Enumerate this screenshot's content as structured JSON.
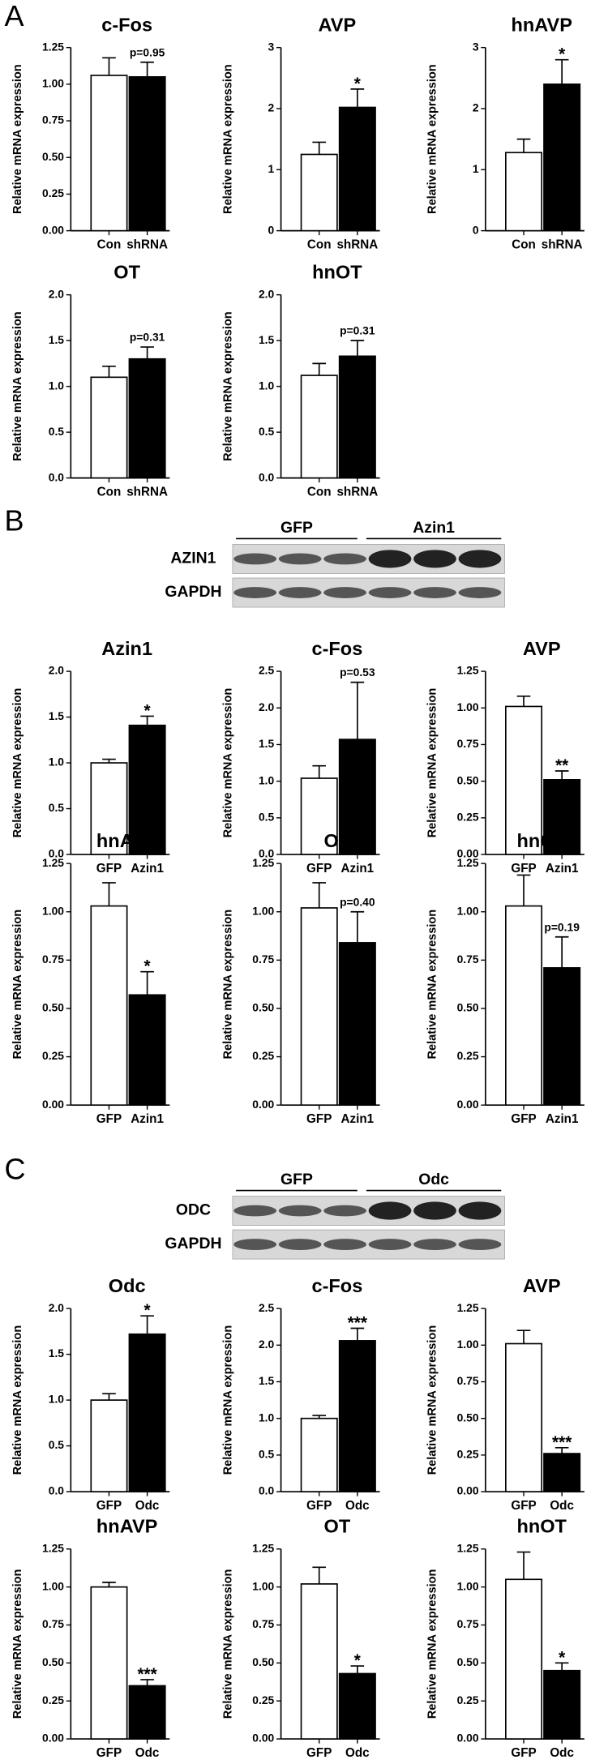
{
  "panel_labels": [
    "A",
    "B",
    "C"
  ],
  "blots": [
    {
      "groups": [
        "GFP",
        "Azin1"
      ],
      "rows": [
        "AZIN1",
        "GAPDH"
      ]
    },
    {
      "groups": [
        "GFP",
        "Odc"
      ],
      "rows": [
        "ODC",
        "GAPDH"
      ]
    }
  ],
  "chart_data": [
    {
      "type": "bar",
      "title": "c-Fos",
      "ylabel": "Relative mRNA expression",
      "categories": [
        "Con",
        "shRNA"
      ],
      "values": [
        1.06,
        1.05
      ],
      "errors": [
        0.12,
        0.1
      ],
      "colors": [
        "#ffffff",
        "#000000"
      ],
      "annotations": [
        null,
        "p=0.95"
      ],
      "ylim": [
        0,
        1.25
      ],
      "yticks": [
        {
          "value": 0,
          "label": "0.00"
        },
        0.25,
        {
          "value": 0.5,
          "label": "0.50"
        },
        0.75,
        {
          "value": 1,
          "label": "1.00"
        },
        1.25
      ]
    },
    {
      "type": "bar",
      "title": "AVP",
      "ylabel": "Relative mRNA expression",
      "categories": [
        "Con",
        "shRNA"
      ],
      "values": [
        1.25,
        2.02
      ],
      "errors": [
        0.2,
        0.3
      ],
      "colors": [
        "#ffffff",
        "#000000"
      ],
      "annotations": [
        null,
        "*"
      ],
      "ylim": [
        0,
        3
      ],
      "yticks": [
        0,
        1,
        2,
        3
      ]
    },
    {
      "type": "bar",
      "title": "hnAVP",
      "ylabel": "Relative mRNA expression",
      "categories": [
        "Con",
        "shRNA"
      ],
      "values": [
        1.28,
        2.4
      ],
      "errors": [
        0.22,
        0.4
      ],
      "colors": [
        "#ffffff",
        "#000000"
      ],
      "annotations": [
        null,
        "*"
      ],
      "ylim": [
        0,
        3
      ],
      "yticks": [
        0,
        1,
        2,
        3
      ]
    },
    {
      "type": "bar",
      "title": "OT",
      "ylabel": "Relative mRNA expression",
      "categories": [
        "Con",
        "shRNA"
      ],
      "values": [
        1.1,
        1.3
      ],
      "errors": [
        0.12,
        0.13
      ],
      "colors": [
        "#ffffff",
        "#000000"
      ],
      "annotations": [
        null,
        "p=0.31"
      ],
      "ylim": [
        0,
        2
      ],
      "yticks": [
        {
          "value": 0,
          "label": "0.0"
        },
        0.5,
        {
          "value": 1,
          "label": "1.0"
        },
        1.5,
        {
          "value": 2,
          "label": "2.0"
        }
      ]
    },
    {
      "type": "bar",
      "title": "hnOT",
      "ylabel": "Relative mRNA expression",
      "categories": [
        "Con",
        "shRNA"
      ],
      "values": [
        1.12,
        1.33
      ],
      "errors": [
        0.13,
        0.17
      ],
      "colors": [
        "#ffffff",
        "#000000"
      ],
      "annotations": [
        null,
        "p=0.31"
      ],
      "ylim": [
        0,
        2
      ],
      "yticks": [
        {
          "value": 0,
          "label": "0.0"
        },
        0.5,
        {
          "value": 1,
          "label": "1.0"
        },
        1.5,
        {
          "value": 2,
          "label": "2.0"
        }
      ]
    },
    {
      "type": "bar",
      "title": "Azin1",
      "ylabel": "Relative mRNA expression",
      "categories": [
        "GFP",
        "Azin1"
      ],
      "values": [
        1.0,
        1.41
      ],
      "errors": [
        0.04,
        0.1
      ],
      "colors": [
        "#ffffff",
        "#000000"
      ],
      "annotations": [
        null,
        "*"
      ],
      "ylim": [
        0,
        2
      ],
      "yticks": [
        {
          "value": 0,
          "label": "0.0"
        },
        0.5,
        {
          "value": 1,
          "label": "1.0"
        },
        1.5,
        {
          "value": 2,
          "label": "2.0"
        }
      ]
    },
    {
      "type": "bar",
      "title": "c-Fos",
      "ylabel": "Relative mRNA expression",
      "categories": [
        "GFP",
        "Azin1"
      ],
      "values": [
        1.04,
        1.57
      ],
      "errors": [
        0.17,
        0.78
      ],
      "colors": [
        "#ffffff",
        "#000000"
      ],
      "annotations": [
        null,
        "p=0.53"
      ],
      "ylim": [
        0,
        2.5
      ],
      "yticks": [
        {
          "value": 0,
          "label": "0.0"
        },
        0.5,
        {
          "value": 1,
          "label": "1.0"
        },
        1.5,
        {
          "value": 2,
          "label": "2.0"
        },
        2.5
      ]
    },
    {
      "type": "bar",
      "title": "AVP",
      "ylabel": "Relative mRNA expression",
      "categories": [
        "GFP",
        "Azin1"
      ],
      "values": [
        1.01,
        0.51
      ],
      "errors": [
        0.07,
        0.06
      ],
      "colors": [
        "#ffffff",
        "#000000"
      ],
      "annotations": [
        null,
        "**"
      ],
      "ylim": [
        0,
        1.25
      ],
      "yticks": [
        {
          "value": 0,
          "label": "0.00"
        },
        0.25,
        {
          "value": 0.5,
          "label": "0.50"
        },
        0.75,
        {
          "value": 1,
          "label": "1.00"
        },
        1.25
      ]
    },
    {
      "type": "bar",
      "title": "hnAVP",
      "ylabel": "Relative mRNA expression",
      "categories": [
        "GFP",
        "Azin1"
      ],
      "values": [
        1.03,
        0.57
      ],
      "errors": [
        0.12,
        0.12
      ],
      "colors": [
        "#ffffff",
        "#000000"
      ],
      "annotations": [
        null,
        "*"
      ],
      "ylim": [
        0,
        1.25
      ],
      "yticks": [
        {
          "value": 0,
          "label": "0.00"
        },
        0.25,
        {
          "value": 0.5,
          "label": "0.50"
        },
        0.75,
        {
          "value": 1,
          "label": "1.00"
        },
        1.25
      ]
    },
    {
      "type": "bar",
      "title": "OT",
      "ylabel": "Relative mRNA expression",
      "categories": [
        "GFP",
        "Azin1"
      ],
      "values": [
        1.02,
        0.84
      ],
      "errors": [
        0.13,
        0.16
      ],
      "colors": [
        "#ffffff",
        "#000000"
      ],
      "annotations": [
        null,
        "p=0.40"
      ],
      "ylim": [
        0,
        1.25
      ],
      "yticks": [
        {
          "value": 0,
          "label": "0.00"
        },
        0.25,
        {
          "value": 0.5,
          "label": "0.50"
        },
        0.75,
        {
          "value": 1,
          "label": "1.00"
        },
        1.25
      ]
    },
    {
      "type": "bar",
      "title": "hnOT",
      "ylabel": "Relative mRNA expression",
      "categories": [
        "GFP",
        "Azin1"
      ],
      "values": [
        1.03,
        0.71
      ],
      "errors": [
        0.16,
        0.16
      ],
      "colors": [
        "#ffffff",
        "#000000"
      ],
      "annotations": [
        null,
        "p=0.19"
      ],
      "ylim": [
        0,
        1.25
      ],
      "yticks": [
        {
          "value": 0,
          "label": "0.00"
        },
        0.25,
        {
          "value": 0.5,
          "label": "0.50"
        },
        0.75,
        {
          "value": 1,
          "label": "1.00"
        },
        1.25
      ]
    },
    {
      "type": "bar",
      "title": "Odc",
      "ylabel": "Relative mRNA expression",
      "categories": [
        "GFP",
        "Odc"
      ],
      "values": [
        1.0,
        1.72
      ],
      "errors": [
        0.07,
        0.2
      ],
      "colors": [
        "#ffffff",
        "#000000"
      ],
      "annotations": [
        null,
        "*"
      ],
      "ylim": [
        0,
        2
      ],
      "yticks": [
        {
          "value": 0,
          "label": "0.0"
        },
        0.5,
        {
          "value": 1,
          "label": "1.0"
        },
        1.5,
        {
          "value": 2,
          "label": "2.0"
        }
      ]
    },
    {
      "type": "bar",
      "title": "c-Fos",
      "ylabel": "Relative mRNA expression",
      "categories": [
        "GFP",
        "Odc"
      ],
      "values": [
        1.0,
        2.06
      ],
      "errors": [
        0.04,
        0.17
      ],
      "colors": [
        "#ffffff",
        "#000000"
      ],
      "annotations": [
        null,
        "***"
      ],
      "ylim": [
        0,
        2.5
      ],
      "yticks": [
        {
          "value": 0,
          "label": "0.0"
        },
        0.5,
        {
          "value": 1,
          "label": "1.0"
        },
        1.5,
        {
          "value": 2,
          "label": "2.0"
        },
        2.5
      ]
    },
    {
      "type": "bar",
      "title": "AVP",
      "ylabel": "Relative mRNA expression",
      "categories": [
        "GFP",
        "Odc"
      ],
      "values": [
        1.01,
        0.26
      ],
      "errors": [
        0.09,
        0.04
      ],
      "colors": [
        "#ffffff",
        "#000000"
      ],
      "annotations": [
        null,
        "***"
      ],
      "ylim": [
        0,
        1.25
      ],
      "yticks": [
        {
          "value": 0,
          "label": "0.00"
        },
        0.25,
        {
          "value": 0.5,
          "label": "0.50"
        },
        0.75,
        {
          "value": 1,
          "label": "1.00"
        },
        1.25
      ]
    },
    {
      "type": "bar",
      "title": "hnAVP",
      "ylabel": "Relative mRNA expression",
      "categories": [
        "GFP",
        "Odc"
      ],
      "values": [
        1.0,
        0.35
      ],
      "errors": [
        0.03,
        0.04
      ],
      "colors": [
        "#ffffff",
        "#000000"
      ],
      "annotations": [
        null,
        "***"
      ],
      "ylim": [
        0,
        1.25
      ],
      "yticks": [
        {
          "value": 0,
          "label": "0.00"
        },
        0.25,
        {
          "value": 0.5,
          "label": "0.50"
        },
        0.75,
        {
          "value": 1,
          "label": "1.00"
        },
        1.25
      ]
    },
    {
      "type": "bar",
      "title": "OT",
      "ylabel": "Relative mRNA expression",
      "categories": [
        "GFP",
        "Odc"
      ],
      "values": [
        1.02,
        0.43
      ],
      "errors": [
        0.11,
        0.05
      ],
      "colors": [
        "#ffffff",
        "#000000"
      ],
      "annotations": [
        null,
        "*"
      ],
      "ylim": [
        0,
        1.25
      ],
      "yticks": [
        {
          "value": 0,
          "label": "0.00"
        },
        0.25,
        {
          "value": 0.5,
          "label": "0.50"
        },
        0.75,
        {
          "value": 1,
          "label": "1.00"
        },
        1.25
      ]
    },
    {
      "type": "bar",
      "title": "hnOT",
      "ylabel": "Relative mRNA expression",
      "categories": [
        "GFP",
        "Odc"
      ],
      "values": [
        1.05,
        0.45
      ],
      "errors": [
        0.18,
        0.05
      ],
      "colors": [
        "#ffffff",
        "#000000"
      ],
      "annotations": [
        null,
        "*"
      ],
      "ylim": [
        0,
        1.25
      ],
      "yticks": [
        {
          "value": 0,
          "label": "0.00"
        },
        0.25,
        {
          "value": 0.5,
          "label": "0.50"
        },
        0.75,
        {
          "value": 1,
          "label": "1.00"
        },
        1.25
      ]
    }
  ]
}
